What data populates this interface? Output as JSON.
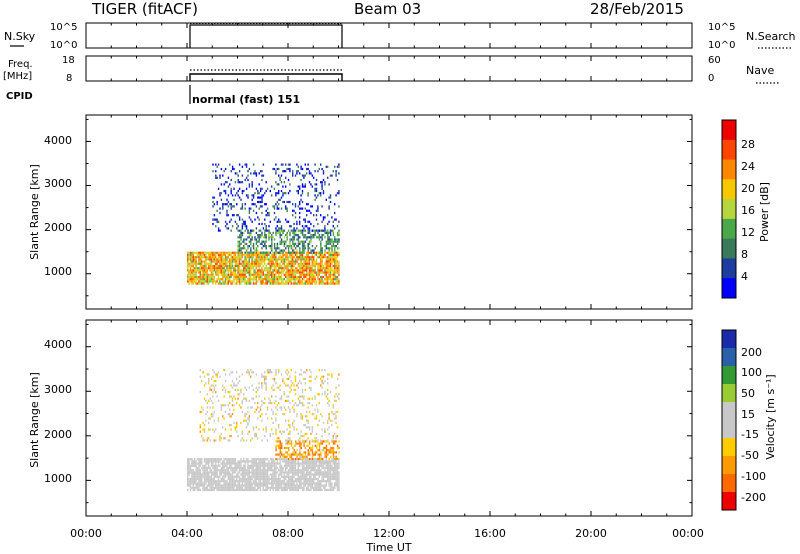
{
  "header": {
    "station": "TIGER (fitACF)",
    "beam": "Beam 03",
    "date": "28/Feb/2015"
  },
  "nsky_panel": {
    "left_label": "N.Sky",
    "right_label": "N.Search",
    "left_ticks": [
      "10^5",
      "10^0"
    ],
    "right_ticks": [
      "10^5",
      "10^0"
    ]
  },
  "freq_panel": {
    "left_label_1": "Freq.",
    "left_label_2": "[MHz]",
    "right_label": "Nave",
    "left_ticks": [
      "18",
      "8"
    ],
    "right_ticks": [
      "60",
      "0"
    ]
  },
  "cpid": {
    "label": "CPID",
    "text": "normal (fast) 151"
  },
  "colors": {
    "power_scale": [
      "#0000ff",
      "#1d3c9e",
      "#3a7a5a",
      "#4aa84a",
      "#b5d63c",
      "#f7c800",
      "#ff8800",
      "#ff4400",
      "#ee0000"
    ],
    "velocity_scale": [
      "#ee0000",
      "#ff6a00",
      "#ff9a00",
      "#ffcc00",
      "#c8c8c8",
      "#c8c8c8",
      "#99cc33",
      "#339933",
      "#2a5faa",
      "#1a2aa8"
    ]
  },
  "chart_data": [
    {
      "type": "heatmap",
      "name": "power",
      "ylabel": "Slant Range [km]",
      "yticks": [
        "1000",
        "2000",
        "3000",
        "4000"
      ],
      "ylim": [
        200,
        4600
      ],
      "xlim": [
        "00:00",
        "24:00"
      ],
      "data_extent": [
        "04:00",
        "10:00"
      ],
      "colorbar_label": "Power [dB]",
      "colorbar_ticks": [
        "4",
        "8",
        "12",
        "16",
        "20",
        "24",
        "28"
      ],
      "colorbar_range": [
        0,
        32
      ],
      "bands": [
        {
          "x": [
            "04:00",
            "10:00"
          ],
          "y": [
            800,
            1500
          ],
          "value": 20
        },
        {
          "x": [
            "06:00",
            "10:00"
          ],
          "y": [
            1500,
            2000
          ],
          "value": 10
        },
        {
          "x": [
            "05:00",
            "10:00"
          ],
          "y": [
            2000,
            3500
          ],
          "value": 4
        }
      ]
    },
    {
      "type": "heatmap",
      "name": "velocity",
      "ylabel": "Slant Range [km]",
      "yticks": [
        "1000",
        "2000",
        "3000",
        "4000"
      ],
      "ylim": [
        200,
        4600
      ],
      "xlim": [
        "00:00",
        "24:00"
      ],
      "data_extent": [
        "04:00",
        "10:00"
      ],
      "colorbar_label": "Velocity [m s⁻¹]",
      "colorbar_ticks": [
        "200",
        "100",
        "50",
        "15",
        "-15",
        "-50",
        "-100",
        "-200"
      ],
      "colorbar_range": [
        -250,
        250
      ],
      "bands": [
        {
          "x": [
            "04:00",
            "10:00"
          ],
          "y": [
            800,
            1500
          ],
          "value": 0
        },
        {
          "x": [
            "07:30",
            "10:00"
          ],
          "y": [
            1500,
            1900
          ],
          "value": -120
        },
        {
          "x": [
            "04:30",
            "10:00"
          ],
          "y": [
            1900,
            3500
          ],
          "value": -30
        }
      ]
    }
  ],
  "xaxis": {
    "ticks": [
      "00:00",
      "04:00",
      "08:00",
      "12:00",
      "16:00",
      "20:00",
      "00:00"
    ],
    "label": "Time UT"
  }
}
